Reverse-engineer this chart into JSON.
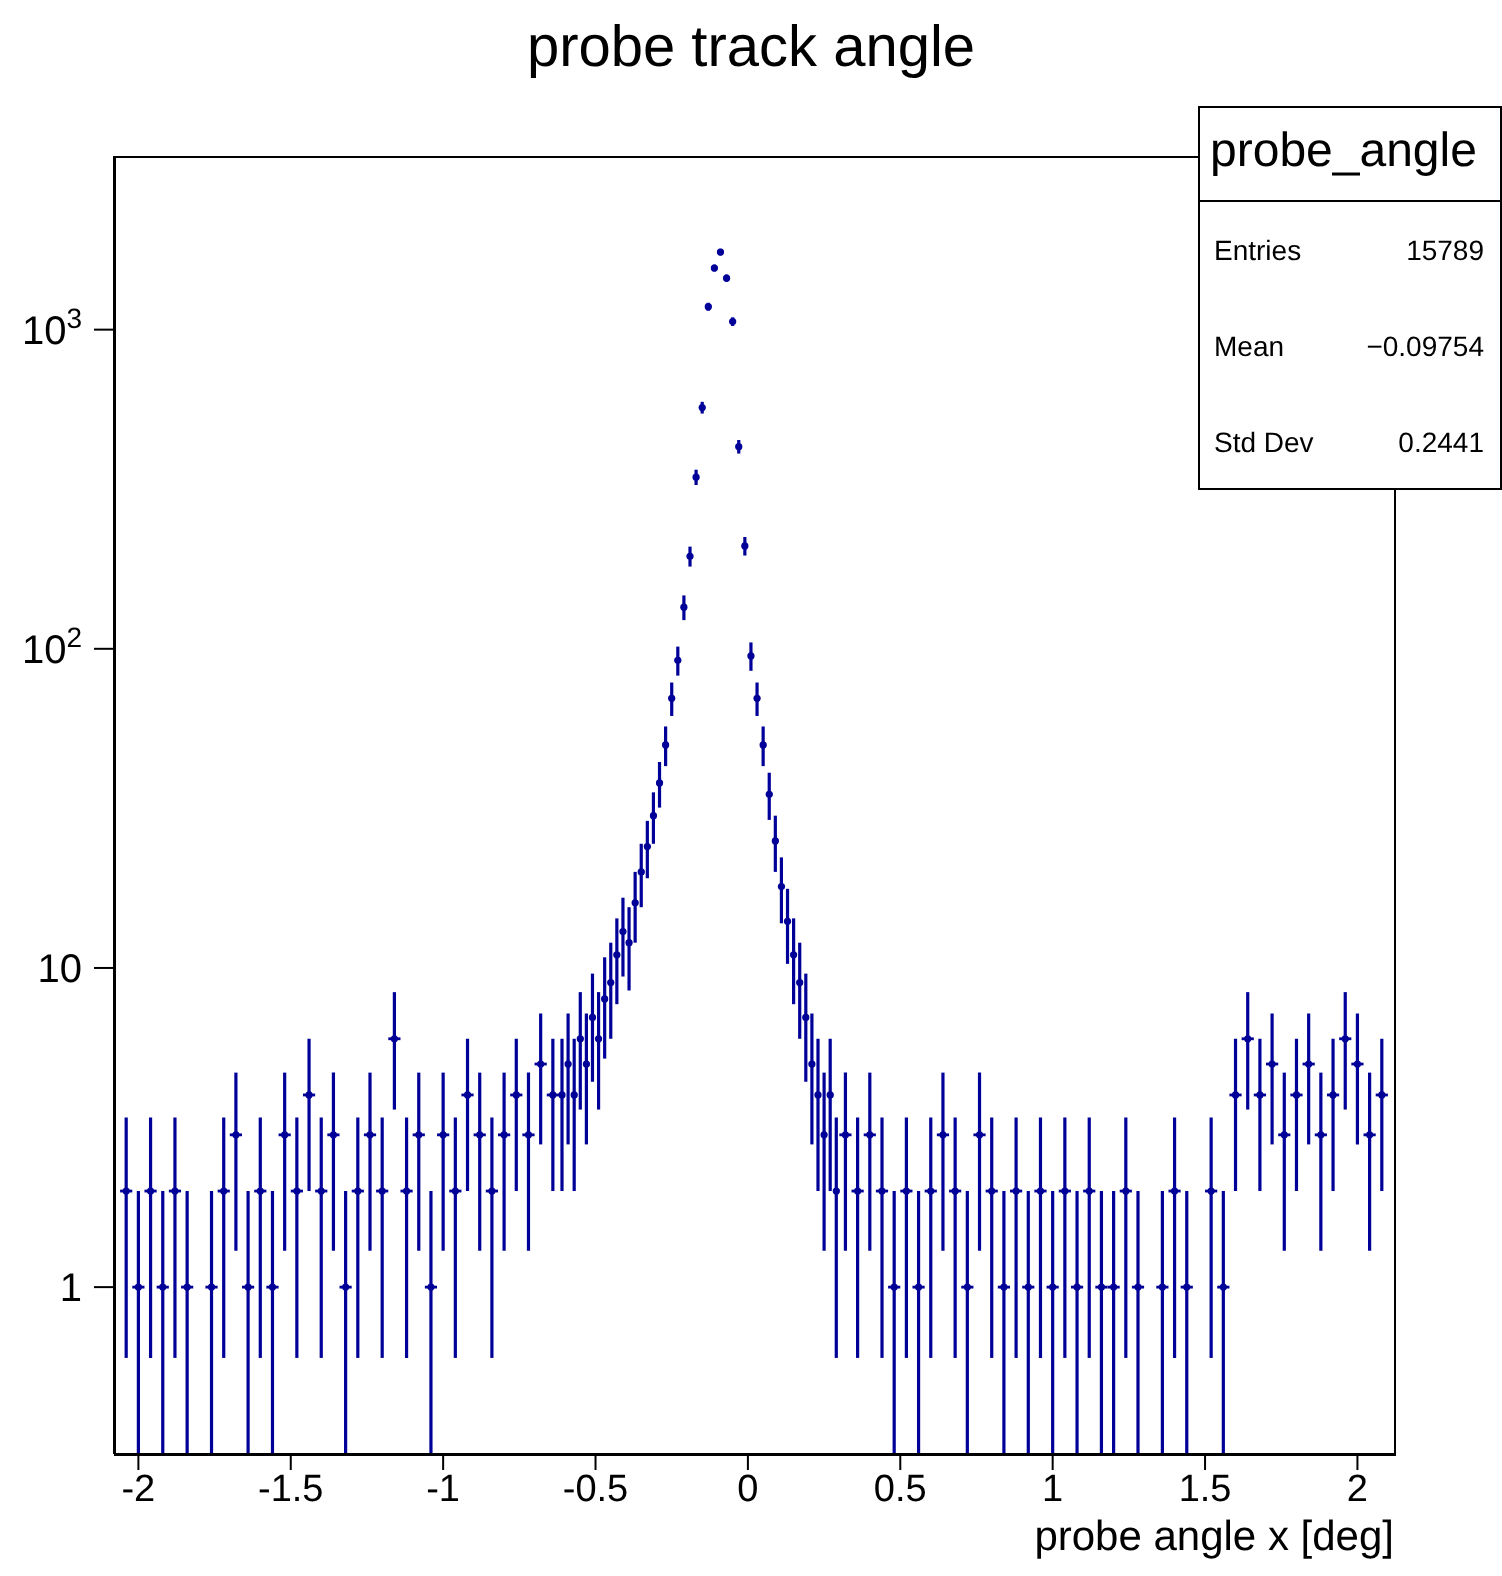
{
  "chart_data": {
    "type": "scatter",
    "title": "probe track angle",
    "xlabel": "probe angle x [deg]",
    "annotations": [
      "probe_angle",
      "Entries",
      "15789",
      "Mean",
      "−0.09754",
      "Std Dev",
      "0.2441"
    ],
    "x": [
      -2.04,
      -2,
      -1.96,
      -1.92,
      -1.88,
      -1.84,
      -1.76,
      -1.72,
      -1.68,
      -1.64,
      -1.6,
      -1.56,
      -1.52,
      -1.48,
      -1.44,
      -1.4,
      -1.36,
      -1.32,
      -1.28,
      -1.24,
      -1.2,
      -1.16,
      -1.12,
      -1.08,
      -1.04,
      -1,
      -0.96,
      -0.92,
      -0.88,
      -0.84,
      -0.8,
      -0.76,
      -0.72,
      -0.68,
      -0.64,
      -0.61,
      -0.59,
      -0.57,
      -0.55,
      -0.53,
      -0.51,
      -0.49,
      -0.47,
      -0.45,
      -0.43,
      -0.41,
      -0.39,
      -0.37,
      -0.35,
      -0.33,
      -0.31,
      -0.29,
      -0.27,
      -0.25,
      -0.23,
      -0.21,
      -0.19,
      -0.17,
      -0.15,
      -0.13,
      -0.11,
      -0.09,
      -0.07,
      -0.05,
      -0.03,
      -0.01,
      0.01,
      0.03,
      0.05,
      0.07,
      0.09,
      0.11,
      0.13,
      0.15,
      0.17,
      0.19,
      0.21,
      0.23,
      0.25,
      0.27,
      0.29,
      0.32,
      0.36,
      0.4,
      0.44,
      0.48,
      0.52,
      0.56,
      0.6,
      0.64,
      0.68,
      0.72,
      0.76,
      0.8,
      0.84,
      0.88,
      0.92,
      0.96,
      1,
      1.04,
      1.08,
      1.12,
      1.16,
      1.2,
      1.24,
      1.28,
      1.36,
      1.4,
      1.44,
      1.52,
      1.56,
      1.6,
      1.64,
      1.68,
      1.72,
      1.76,
      1.8,
      1.84,
      1.88,
      1.92,
      1.96,
      2,
      2.04,
      2.08
    ],
    "values": [
      2,
      1,
      2,
      1,
      2,
      1,
      1,
      2,
      3,
      1,
      2,
      1,
      3,
      2,
      4,
      2,
      3,
      1,
      2,
      3,
      2,
      6,
      2,
      3,
      1,
      3,
      2,
      4,
      3,
      2,
      3,
      4,
      3,
      5,
      4,
      4,
      5,
      4,
      6,
      5,
      7,
      6,
      8,
      9,
      11,
      13,
      12,
      16,
      20,
      24,
      30,
      38,
      50,
      70,
      92,
      135,
      195,
      345,
      570,
      1180,
      1560,
      1750,
      1450,
      1060,
      430,
      210,
      95,
      70,
      50,
      35,
      25,
      18,
      14,
      11,
      9,
      7,
      5,
      4,
      3,
      4,
      2,
      3,
      2,
      3,
      2,
      1,
      2,
      1,
      2,
      3,
      2,
      1,
      3,
      2,
      1,
      2,
      1,
      2,
      1,
      2,
      1,
      2,
      1,
      1,
      2,
      1,
      1,
      2,
      1,
      2,
      1,
      4,
      6,
      4,
      5,
      3,
      4,
      5,
      3,
      4,
      6,
      5,
      3,
      4
    ],
    "errors": [
      1.4,
      [
        0.3,
        2
      ],
      1.4,
      [
        0.3,
        2
      ],
      1.4,
      [
        0.3,
        2
      ],
      [
        0.3,
        2
      ],
      1.4,
      1.7,
      [
        0.3,
        2
      ],
      1.4,
      [
        0.3,
        2
      ],
      1.7,
      1.4,
      2,
      1.4,
      1.7,
      [
        0.3,
        2
      ],
      1.4,
      1.7,
      1.4,
      2.4,
      1.4,
      1.7,
      [
        0.3,
        2
      ],
      1.7,
      1.4,
      2,
      1.7,
      1.4,
      1.7,
      2,
      1.7,
      2.2,
      2,
      2,
      2.2,
      2,
      2.4,
      2.2,
      2.6,
      2.4,
      2.8,
      3,
      3.3,
      3.6,
      3.5,
      4,
      4.5,
      4.9,
      5.5,
      6.2,
      7.1,
      8.4,
      9.6,
      12,
      14,
      19,
      24,
      34,
      39,
      42,
      38,
      33,
      21,
      14,
      9.7,
      8.4,
      7.1,
      5.9,
      5,
      4.2,
      3.7,
      3.3,
      3,
      2.6,
      2.2,
      2,
      1.7,
      2,
      1.4,
      1.7,
      1.4,
      1.7,
      1.4,
      [
        0.3,
        2
      ],
      1.4,
      [
        0.3,
        2
      ],
      1.4,
      1.7,
      1.4,
      [
        0.3,
        2
      ],
      1.7,
      1.4,
      [
        0.3,
        2
      ],
      1.4,
      [
        0.3,
        2
      ],
      1.4,
      [
        0.3,
        2
      ],
      1.4,
      [
        0.3,
        2
      ],
      1.4,
      [
        0.3,
        2
      ],
      [
        0.3,
        2
      ],
      1.4,
      [
        0.3,
        2
      ],
      [
        0.3,
        2
      ],
      1.4,
      [
        0.3,
        2
      ],
      1.4,
      [
        0.3,
        2
      ],
      2,
      2.4,
      2,
      2.2,
      1.7,
      2,
      2.2,
      1.7,
      2,
      2.4,
      2.2,
      1.7,
      2
    ],
    "xerrors": [
      0.02,
      0.02,
      0.02,
      0.02,
      0.02,
      0.02,
      0.02,
      0.02,
      0.02,
      0.02,
      0.02,
      0.02,
      0.02,
      0.02,
      0.02,
      0.02,
      0.02,
      0.02,
      0.02,
      0.02,
      0.02,
      0.02,
      0.02,
      0.02,
      0.02,
      0.02,
      0.02,
      0.02,
      0.02,
      0.02,
      0.02,
      0.02,
      0.02,
      0.02,
      0.02,
      0.01,
      0.01,
      0.01,
      0.01,
      0.01,
      0.01,
      0.01,
      0.01,
      0.01,
      0.01,
      0.01,
      0.01,
      0.01,
      0.01,
      0.01,
      0.01,
      0.01,
      0.01,
      0.01,
      0.01,
      0.01,
      0.01,
      0.01,
      0.01,
      0.01,
      0.01,
      0.01,
      0.01,
      0.01,
      0.01,
      0.01,
      0.01,
      0.01,
      0.01,
      0.01,
      0.01,
      0.01,
      0.01,
      0.01,
      0.01,
      0.01,
      0.01,
      0.01,
      0.01,
      0.01,
      0.01,
      0.02,
      0.02,
      0.02,
      0.02,
      0.02,
      0.02,
      0.02,
      0.02,
      0.02,
      0.02,
      0.02,
      0.02,
      0.02,
      0.02,
      0.02,
      0.02,
      0.02,
      0.02,
      0.02,
      0.02,
      0.02,
      0.02,
      0.02,
      0.02,
      0.02,
      0.02,
      0.02,
      0.02,
      0.02,
      0.02,
      0.02,
      0.02,
      0.02,
      0.02,
      0.02,
      0.02,
      0.02,
      0.02,
      0.02,
      0.02,
      0.02,
      0.02,
      0.02
    ],
    "color": "#000099",
    "log": true,
    "grid": false,
    "legend": false,
    "xlim": [
      -2.08,
      2.12
    ],
    "xticks": [
      -2,
      -1.5,
      -1,
      -0.5,
      0,
      0.5,
      1,
      1.5,
      2
    ],
    "ylim": [
      0.3,
      3500
    ],
    "yticks": [
      {
        "value": 1,
        "label": "1"
      },
      {
        "value": 10,
        "label": "10"
      },
      {
        "value": 100,
        "label": "10$^{2}$"
      },
      {
        "value": 1000,
        "label": "10$^{3}$"
      }
    ]
  }
}
